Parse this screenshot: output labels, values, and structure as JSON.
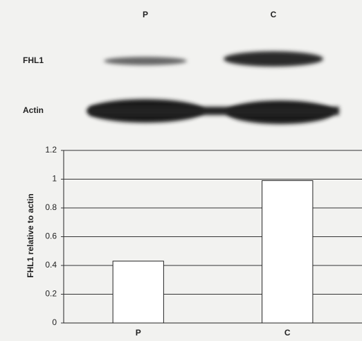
{
  "blot": {
    "lanes": [
      "P",
      "C"
    ],
    "rows": [
      "FHL1",
      "Actin"
    ]
  },
  "chart_data": {
    "type": "bar",
    "y_label": "FHL1 relative to actin",
    "categories": [
      "P",
      "C"
    ],
    "values": [
      0.43,
      0.99
    ],
    "color": "#ffffff",
    "ylim": [
      0,
      1.2
    ],
    "yticks": [
      0,
      0.2,
      0.4,
      0.6,
      0.8,
      1,
      1.2
    ],
    "grid": true
  }
}
